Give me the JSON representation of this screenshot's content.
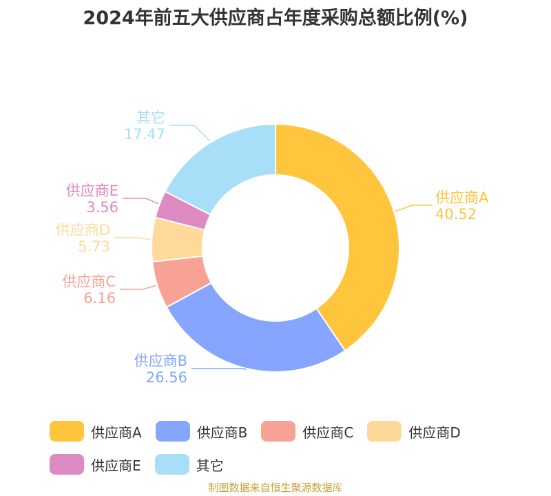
{
  "title": "2024年前五大供应商占年度采购总额比例(%)",
  "source": "制图数据来自恒生聚源数据库",
  "chart_data": {
    "type": "pie",
    "variant": "donut",
    "legend_position": "bottom",
    "slices": [
      {
        "name": "供应商A",
        "value": 40.52,
        "color": "#ffc53d"
      },
      {
        "name": "供应商B",
        "value": 26.56,
        "color": "#85a5ff"
      },
      {
        "name": "供应商C",
        "value": 6.16,
        "color": "#f8a296"
      },
      {
        "name": "供应商D",
        "value": 5.73,
        "color": "#ffd999"
      },
      {
        "name": "供应商E",
        "value": 3.56,
        "color": "#dd8ac3"
      },
      {
        "name": "其它",
        "value": 17.47,
        "color": "#a8def8"
      }
    ]
  }
}
